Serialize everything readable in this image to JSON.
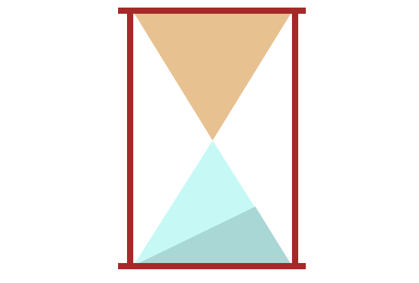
{
  "illustration": {
    "subject": "hourglass",
    "colors": {
      "background": "#ffffff",
      "frame": "#a42a2a",
      "top_bulb_sand": "#e7c190",
      "bottom_bulb_glass": "#c6f9f6",
      "bottom_bulb_sand": "#a9d7d6"
    },
    "sand": {
      "top_bulb_fill_fraction": 1.0,
      "bottom_sand_visible": true
    }
  }
}
